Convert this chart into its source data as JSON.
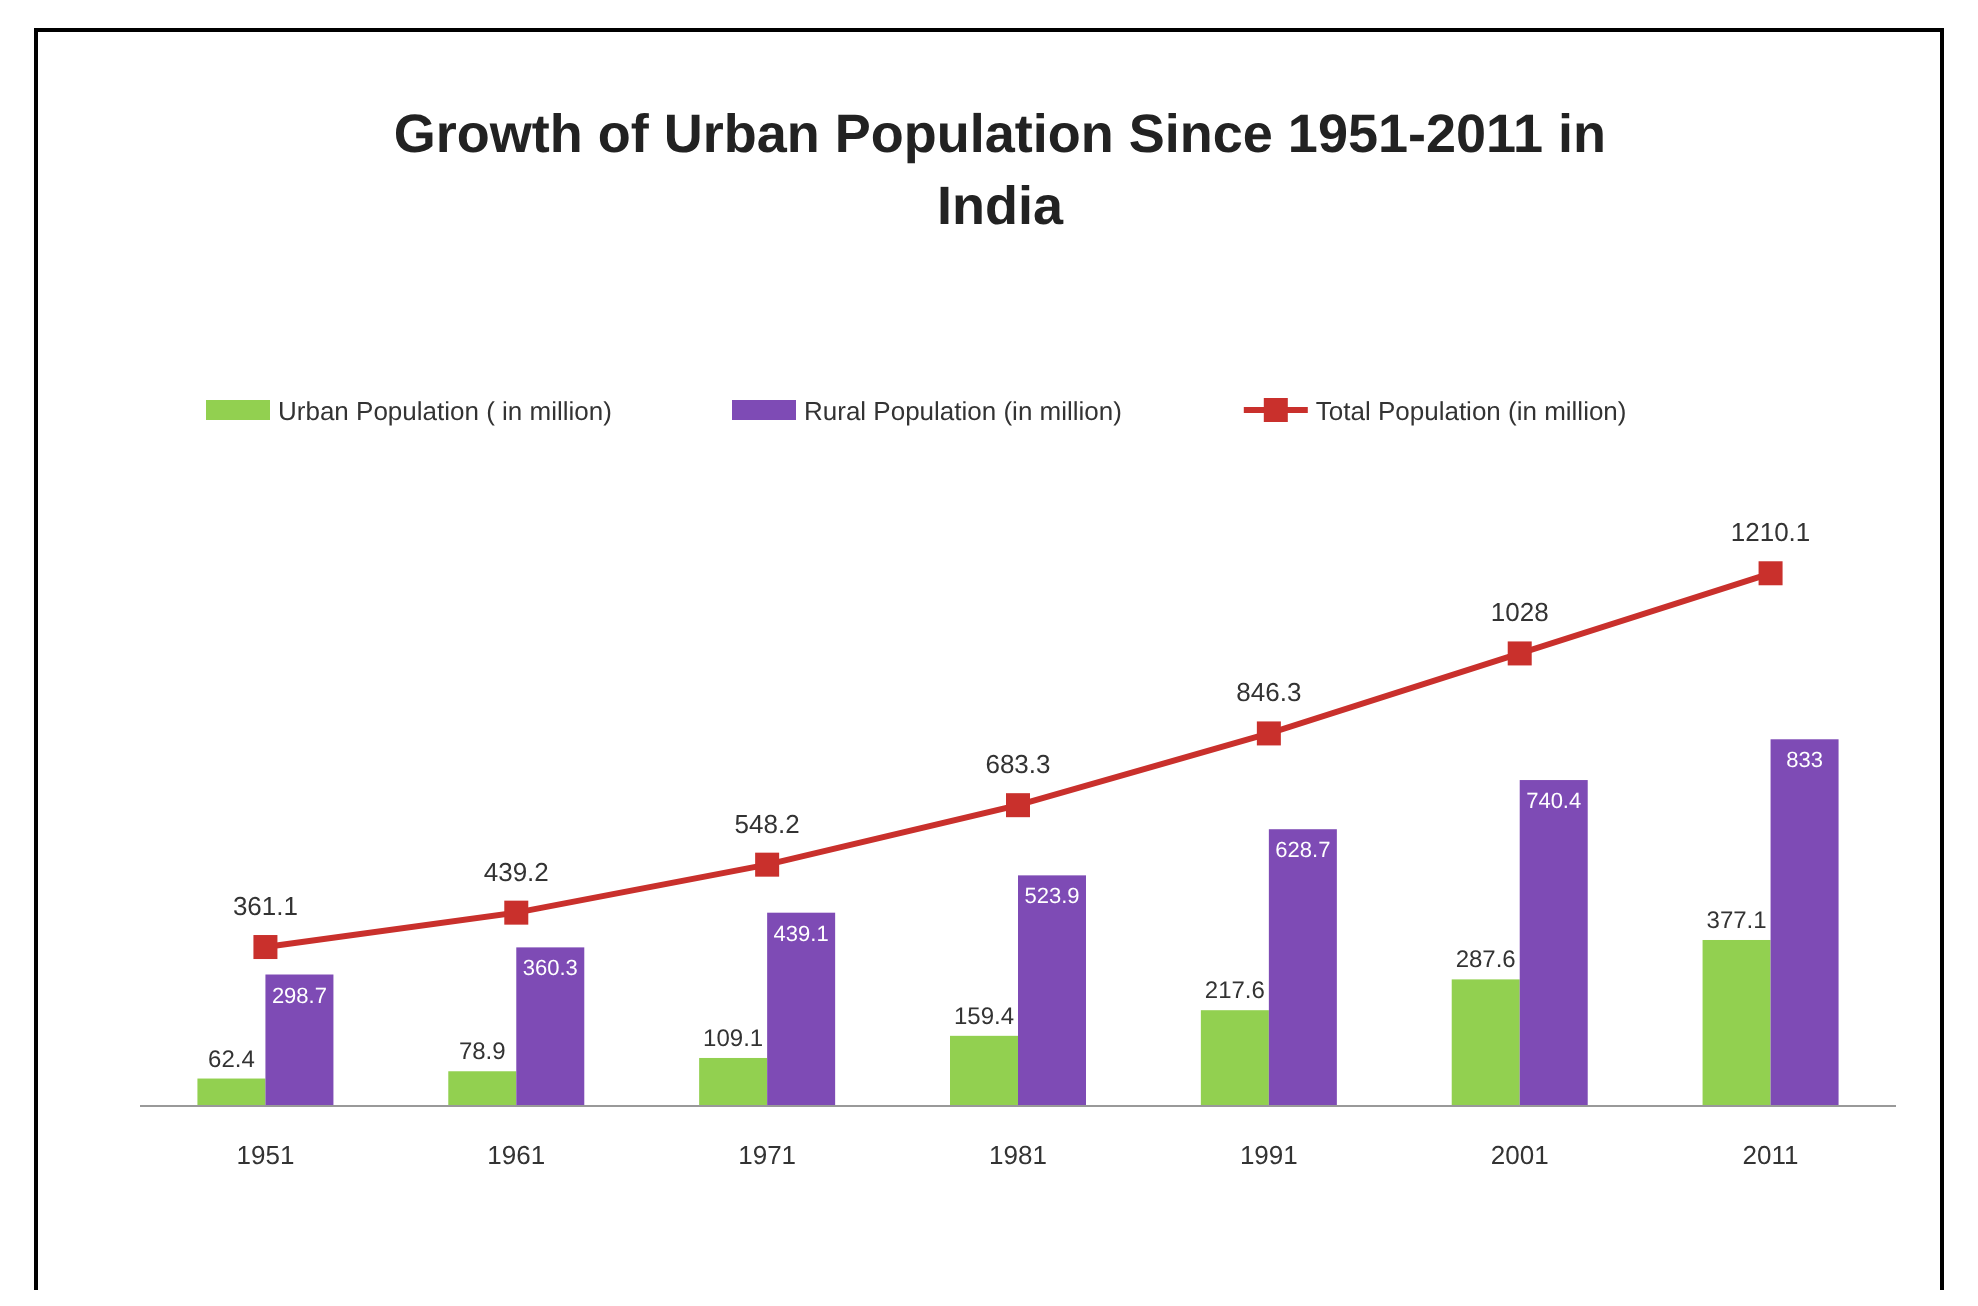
{
  "chart_data": {
    "type": "bar",
    "title": "Growth of Urban Population Since 1951-2011 in India",
    "categories": [
      "1951",
      "1961",
      "1971",
      "1981",
      "1991",
      "2001",
      "2011"
    ],
    "series": [
      {
        "name": "Urban Population ( in million)",
        "color": "#92d050",
        "values": [
          62.4,
          78.9,
          109.1,
          159.4,
          217.6,
          287.6,
          377.1
        ]
      },
      {
        "name": "Rural Population (in million)",
        "color": "#7e4bb5",
        "values": [
          298.7,
          360.3,
          439.1,
          523.9,
          628.7,
          740.4,
          833
        ]
      },
      {
        "name": "Total Population (in million)",
        "type": "line",
        "color": "#c9302c",
        "values": [
          361.1,
          439.2,
          548.2,
          683.3,
          846.3,
          1028,
          1210.1
        ],
        "marker": "square"
      }
    ],
    "data_labels": true,
    "legend": "top",
    "grid": false
  }
}
